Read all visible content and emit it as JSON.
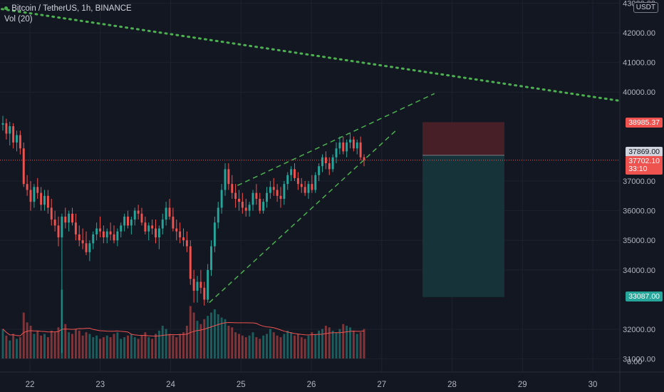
{
  "legend": {
    "symbol": "Bitcoin / TetherUS, 1h, BINANCE",
    "volume_indicator": "Vol (20)"
  },
  "currency_badge": "USDT",
  "price_axis": {
    "ticks": [
      "43000.00",
      "42000.00",
      "41000.00",
      "40000.00",
      "37000.00",
      "36000.00",
      "35000.00",
      "34000.00",
      "32000.00",
      "31000.00"
    ],
    "zero_label": "0.00"
  },
  "time_axis": {
    "ticks": [
      "22",
      "23",
      "24",
      "25",
      "26",
      "27",
      "28",
      "29",
      "30"
    ]
  },
  "price_tags": {
    "stop_loss": "38985.37",
    "entry": "37869.00",
    "last_price": "37702.10",
    "countdown": "33:10",
    "take_profit": "33087.00"
  },
  "colors": {
    "background": "#131722",
    "up": "#26a69a",
    "down": "#ef5350",
    "trendline": "#4caf50",
    "volume_ma": "#ef5350",
    "stop_zone": "#4a2128",
    "target_zone": "#15353b"
  },
  "chart_data": {
    "type": "candlestick",
    "symbol": "Bitcoin / TetherUS",
    "interval": "1h",
    "exchange": "BINANCE",
    "x_ticks": [
      "22",
      "23",
      "24",
      "25",
      "26",
      "27",
      "28",
      "29",
      "30"
    ],
    "y_ticks": [
      31000,
      32000,
      34000,
      35000,
      36000,
      37000,
      40000,
      41000,
      42000,
      43000
    ],
    "ylim": [
      30800,
      43100
    ],
    "last_price": 37702.1,
    "position": {
      "side": "short",
      "entry": 37869.0,
      "stop": 38985.37,
      "target": 33087.0
    },
    "pattern": "rising wedge",
    "trendline_long": {
      "from": [
        "21.6",
        42800
      ],
      "to": [
        "30.4",
        39700
      ]
    },
    "wedge_upper": {
      "from": [
        "24.95",
        36850
      ],
      "to": [
        "27.75",
        39950
      ]
    },
    "wedge_lower": {
      "from": [
        "24.55",
        32900
      ],
      "to": [
        "27.2",
        38700
      ]
    },
    "candles": [
      [
        38900,
        39200,
        38700,
        38950
      ],
      [
        38950,
        39100,
        38400,
        38600
      ],
      [
        38600,
        39000,
        38200,
        38850
      ],
      [
        38850,
        38950,
        38100,
        38300
      ],
      [
        38300,
        38700,
        38000,
        38550
      ],
      [
        38550,
        38700,
        37900,
        38100
      ],
      [
        38100,
        38300,
        36800,
        36900
      ],
      [
        36900,
        37200,
        36500,
        36700
      ],
      [
        36700,
        37000,
        36000,
        36300
      ],
      [
        36300,
        36900,
        36100,
        36800
      ],
      [
        36800,
        37100,
        36400,
        36600
      ],
      [
        36600,
        36800,
        36000,
        36200
      ],
      [
        36200,
        36700,
        36000,
        36500
      ],
      [
        36500,
        36700,
        35900,
        36100
      ],
      [
        36100,
        36400,
        35500,
        35700
      ],
      [
        35700,
        36000,
        35300,
        35500
      ],
      [
        35500,
        35800,
        34800,
        35100
      ],
      [
        35100,
        35900,
        31200,
        35800
      ],
      [
        35800,
        36100,
        35400,
        35600
      ],
      [
        35600,
        36000,
        35300,
        35900
      ],
      [
        35900,
        36100,
        35500,
        35600
      ],
      [
        35600,
        35900,
        35000,
        35200
      ],
      [
        35200,
        35500,
        34800,
        35000
      ],
      [
        35000,
        35400,
        34700,
        34900
      ],
      [
        34900,
        35300,
        34500,
        34600
      ],
      [
        34600,
        35000,
        34300,
        34900
      ],
      [
        34900,
        35300,
        34700,
        35200
      ],
      [
        35200,
        35600,
        35000,
        35400
      ],
      [
        35400,
        35800,
        35100,
        35300
      ],
      [
        35300,
        35500,
        34900,
        35100
      ],
      [
        35100,
        35400,
        34900,
        35300
      ],
      [
        35300,
        35600,
        35000,
        35200
      ],
      [
        35200,
        35500,
        34900,
        35000
      ],
      [
        35000,
        35400,
        34800,
        35300
      ],
      [
        35300,
        35600,
        35100,
        35500
      ],
      [
        35500,
        35900,
        35300,
        35800
      ],
      [
        35800,
        36000,
        35400,
        35500
      ],
      [
        35500,
        35800,
        35200,
        35700
      ],
      [
        35700,
        36100,
        35500,
        36000
      ],
      [
        36000,
        36200,
        35700,
        35900
      ],
      [
        35900,
        36100,
        35500,
        35600
      ],
      [
        35600,
        35800,
        35200,
        35300
      ],
      [
        35300,
        35600,
        35000,
        35500
      ],
      [
        35500,
        35700,
        35200,
        35400
      ],
      [
        35400,
        35700,
        34900,
        35100
      ],
      [
        35100,
        35500,
        34700,
        35400
      ],
      [
        35400,
        35900,
        35200,
        35700
      ],
      [
        35700,
        36300,
        35500,
        36100
      ],
      [
        36100,
        36400,
        35700,
        35800
      ],
      [
        35800,
        36100,
        35300,
        35400
      ],
      [
        35400,
        35700,
        35000,
        35300
      ],
      [
        35300,
        35600,
        34900,
        35100
      ],
      [
        35100,
        35400,
        34800,
        35000
      ],
      [
        35000,
        35300,
        34600,
        34800
      ],
      [
        34800,
        35000,
        33500,
        33700
      ],
      [
        33700,
        34000,
        32900,
        33300
      ],
      [
        33300,
        33800,
        32900,
        33600
      ],
      [
        33600,
        34000,
        33200,
        33400
      ],
      [
        33400,
        33600,
        32800,
        33000
      ],
      [
        33000,
        34200,
        32900,
        34000
      ],
      [
        34000,
        35000,
        33800,
        34800
      ],
      [
        34800,
        35800,
        34600,
        35600
      ],
      [
        35600,
        36300,
        35400,
        36100
      ],
      [
        36100,
        36900,
        35900,
        36700
      ],
      [
        36700,
        37600,
        36500,
        37400
      ],
      [
        37400,
        37600,
        36700,
        36900
      ],
      [
        36900,
        37200,
        36400,
        36600
      ],
      [
        36600,
        36900,
        36100,
        36400
      ],
      [
        36400,
        36700,
        36000,
        36300
      ],
      [
        36300,
        36600,
        35900,
        36100
      ],
      [
        36100,
        36400,
        35800,
        36000
      ],
      [
        36000,
        36300,
        35800,
        36200
      ],
      [
        36200,
        36700,
        36000,
        36600
      ],
      [
        36600,
        36900,
        36200,
        36400
      ],
      [
        36400,
        36600,
        35900,
        36000
      ],
      [
        36000,
        36400,
        35900,
        36300
      ],
      [
        36300,
        36800,
        36100,
        36600
      ],
      [
        36600,
        37000,
        36400,
        36800
      ],
      [
        36800,
        37100,
        36500,
        36700
      ],
      [
        36700,
        36900,
        36300,
        36500
      ],
      [
        36500,
        36800,
        36100,
        36400
      ],
      [
        36400,
        37000,
        36200,
        36900
      ],
      [
        36900,
        37300,
        36700,
        37200
      ],
      [
        37200,
        37500,
        37000,
        37400
      ],
      [
        37400,
        37600,
        37000,
        37100
      ],
      [
        37100,
        37300,
        36700,
        36900
      ],
      [
        36900,
        37100,
        36600,
        36800
      ],
      [
        36800,
        37000,
        36500,
        36600
      ],
      [
        36600,
        37000,
        36400,
        36900
      ],
      [
        36900,
        37200,
        36600,
        36700
      ],
      [
        36700,
        37300,
        36600,
        37200
      ],
      [
        37200,
        37600,
        37000,
        37500
      ],
      [
        37500,
        37900,
        37300,
        37800
      ],
      [
        37800,
        38000,
        37400,
        37600
      ],
      [
        37600,
        37800,
        37200,
        37400
      ],
      [
        37400,
        37900,
        37300,
        37800
      ],
      [
        37800,
        38300,
        37600,
        38100
      ],
      [
        38100,
        38500,
        37900,
        38300
      ],
      [
        38300,
        38500,
        37900,
        38000
      ],
      [
        38000,
        38400,
        37800,
        38300
      ],
      [
        38300,
        38600,
        38100,
        38400
      ],
      [
        38400,
        38500,
        38000,
        38100
      ],
      [
        38100,
        38400,
        37900,
        38300
      ],
      [
        38300,
        38500,
        37700,
        37800
      ],
      [
        37800,
        37900,
        37500,
        37700
      ]
    ],
    "volume": [
      180,
      140,
      110,
      150,
      120,
      130,
      280,
      220,
      200,
      150,
      170,
      140,
      150,
      130,
      170,
      160,
      190,
      420,
      210,
      160,
      150,
      180,
      170,
      140,
      160,
      150,
      130,
      140,
      120,
      130,
      140,
      130,
      150,
      160,
      120,
      130,
      140,
      150,
      130,
      120,
      140,
      160,
      130,
      120,
      150,
      170,
      200,
      180,
      150,
      140,
      130,
      150,
      160,
      200,
      320,
      280,
      230,
      210,
      240,
      260,
      280,
      300,
      270,
      250,
      240,
      200,
      190,
      160,
      150,
      140,
      130,
      140,
      160,
      130,
      120,
      140,
      150,
      180,
      160,
      140,
      130,
      150,
      170,
      160,
      140,
      150,
      130,
      120,
      140,
      160,
      150,
      170,
      180,
      200,
      190,
      170,
      160,
      180,
      210,
      200,
      190,
      170,
      150,
      160,
      180
    ]
  }
}
